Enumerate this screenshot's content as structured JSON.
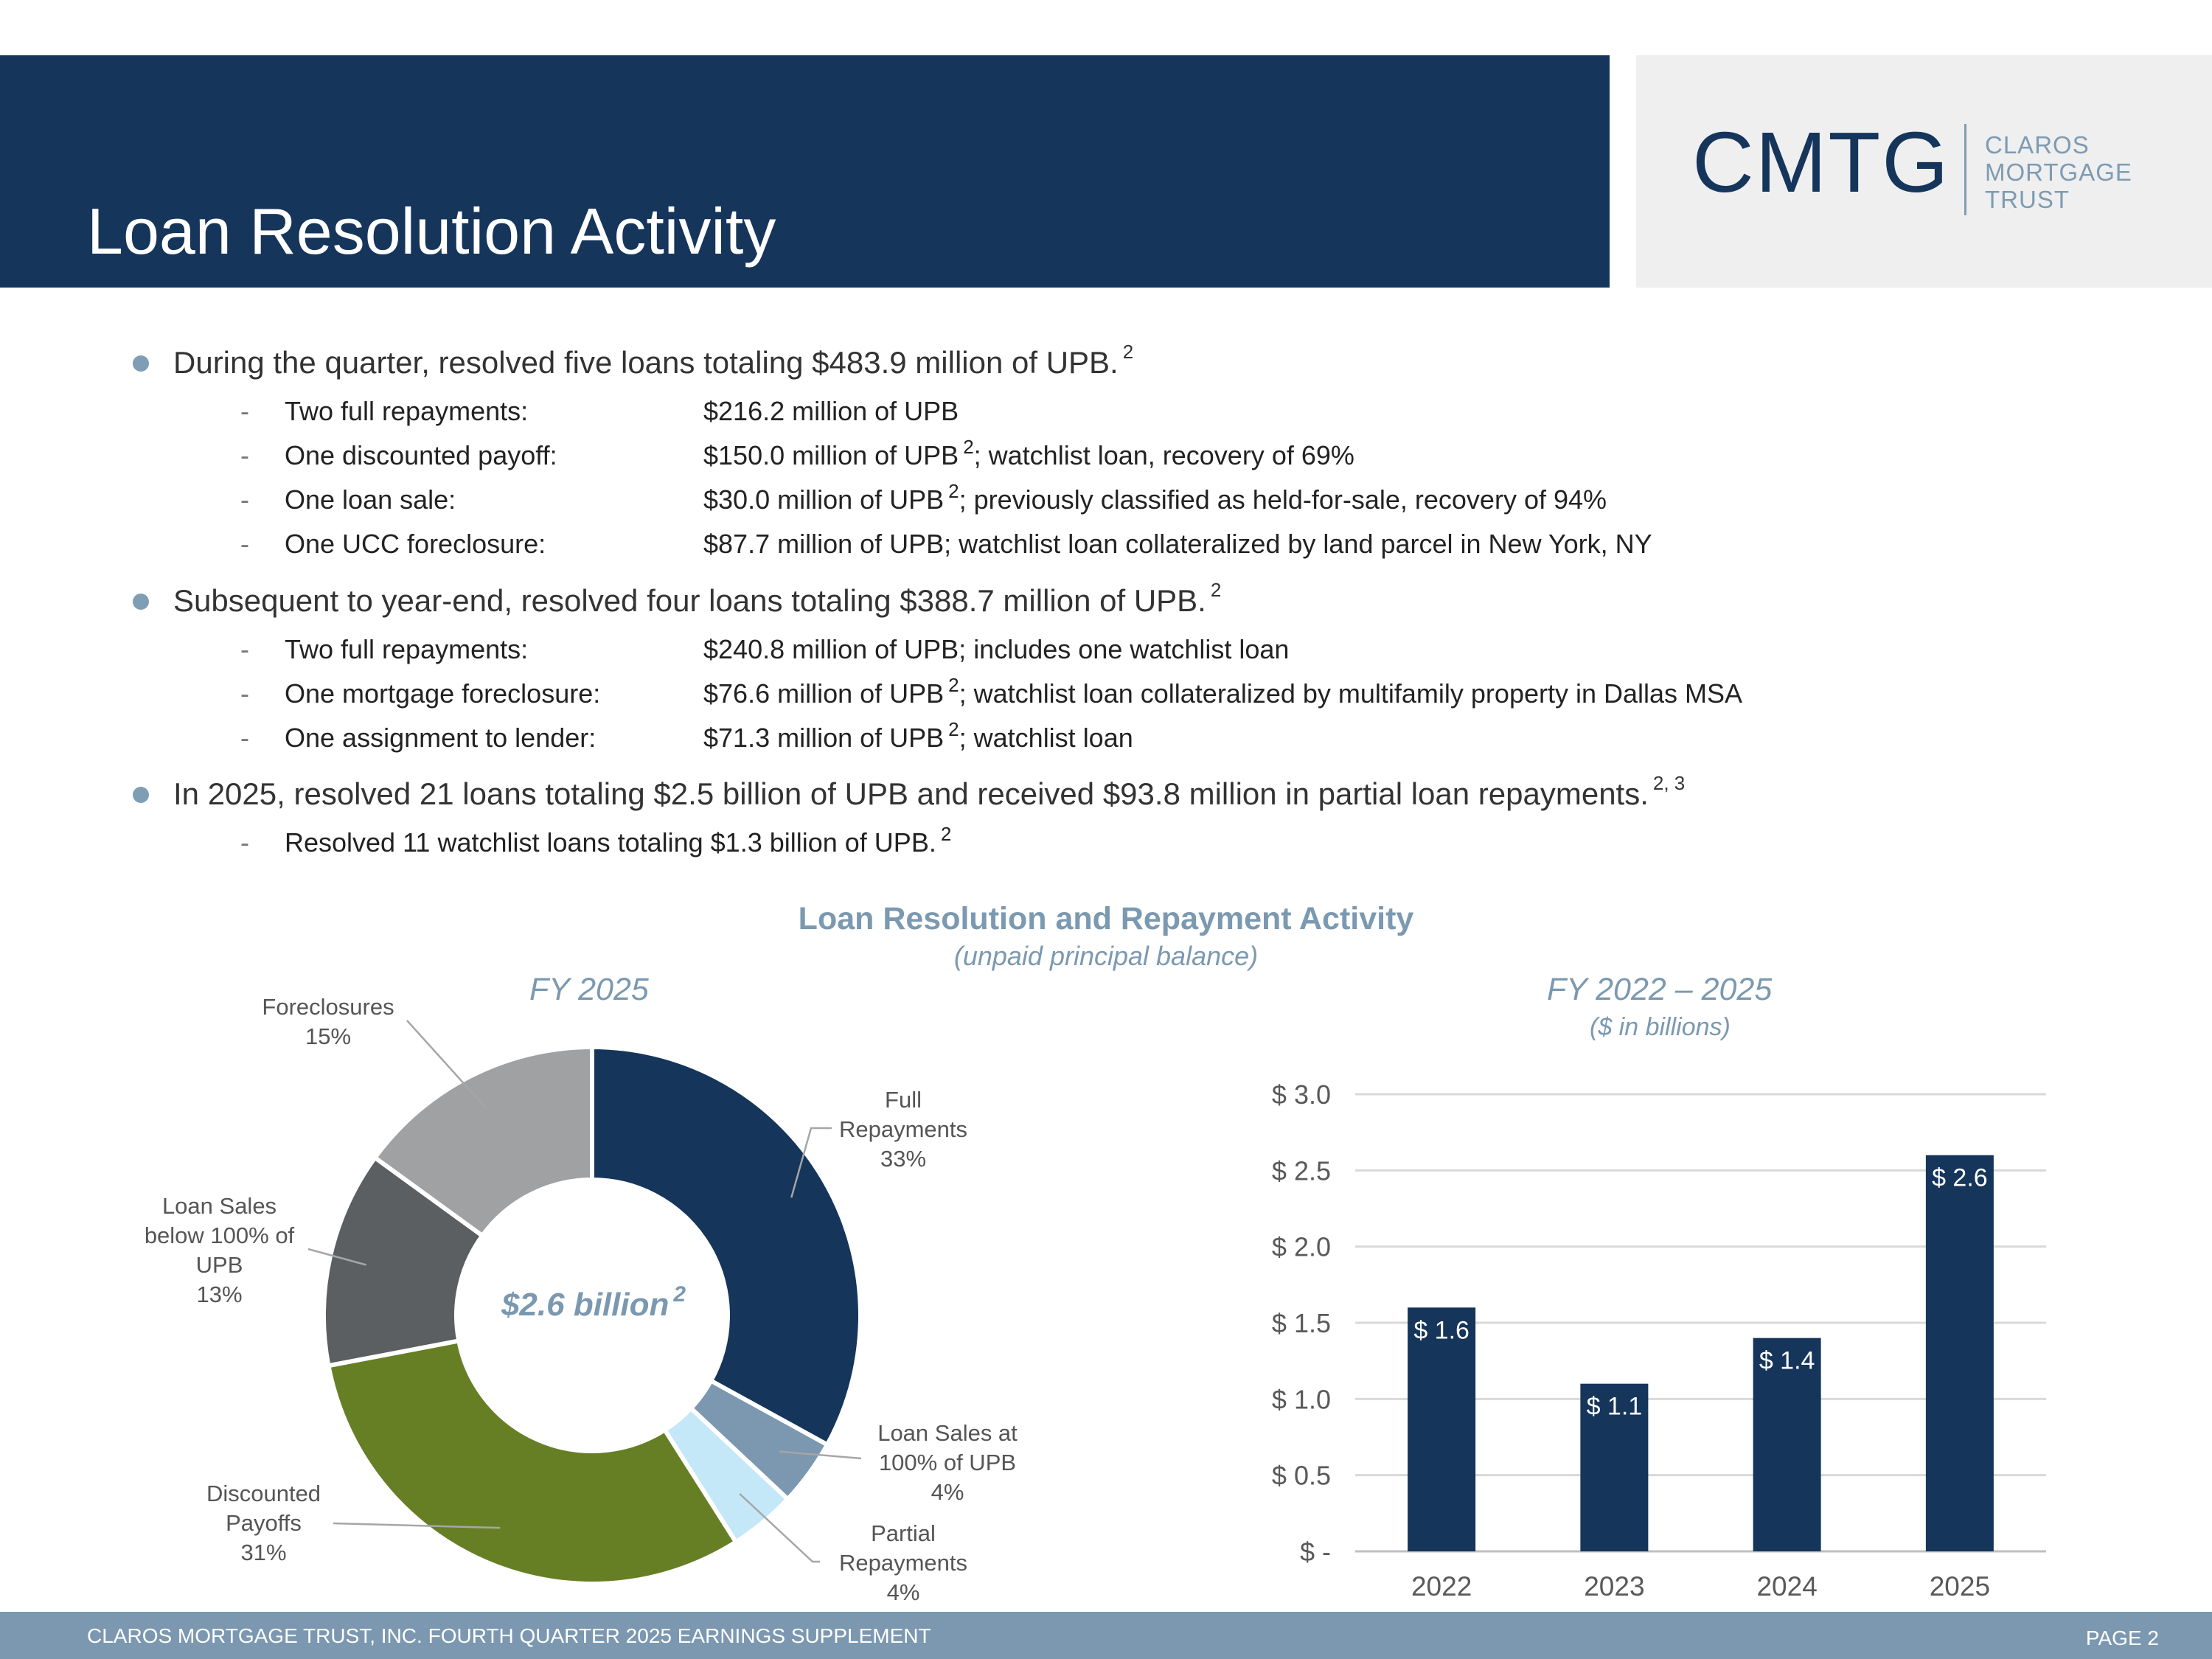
{
  "header": {
    "title": "Loan Resolution Activity",
    "logo_mark": "CMTG",
    "logo_words": [
      "CLAROS",
      "MORTGAGE",
      "TRUST"
    ]
  },
  "bullets": [
    {
      "text": "During the quarter, resolved five loans totaling $483.9 million of UPB.",
      "sup": "2",
      "items": [
        {
          "label": "Two full repayments:",
          "value": "$216.2 million of UPB",
          "sup": "",
          "rest": ""
        },
        {
          "label": "One discounted payoff:",
          "value": "$150.0 million of UPB",
          "sup": "2",
          "rest": "; watchlist loan, recovery of 69%"
        },
        {
          "label": "One loan sale:",
          "value": "$30.0 million of UPB",
          "sup": "2",
          "rest": "; previously classified as held-for-sale, recovery of 94%"
        },
        {
          "label": "One UCC foreclosure:",
          "value": "$87.7 million of UPB; watchlist loan collateralized by land parcel in New York, NY",
          "sup": "",
          "rest": ""
        }
      ]
    },
    {
      "text": "Subsequent to year-end, resolved four loans totaling $388.7 million of UPB.",
      "sup": "2",
      "items": [
        {
          "label": "Two full repayments:",
          "value": "$240.8 million of UPB; includes one watchlist loan",
          "sup": "",
          "rest": ""
        },
        {
          "label": "One mortgage foreclosure:",
          "value": "$76.6 million of UPB",
          "sup": "2",
          "rest": "; watchlist loan collateralized by multifamily property in Dallas MSA"
        },
        {
          "label": "One assignment to lender:",
          "value": "$71.3 million of UPB",
          "sup": "2",
          "rest": "; watchlist loan"
        }
      ]
    },
    {
      "text": "In 2025, resolved 21 loans totaling $2.5 billion of UPB and received $93.8 million in partial loan repayments.",
      "sup": "2, 3",
      "items": [
        {
          "label": "Resolved 11 watchlist loans totaling $1.3 billion of UPB.",
          "value": "",
          "sup": "2",
          "rest": ""
        }
      ]
    }
  ],
  "chart_header": {
    "title": "Loan Resolution and Repayment Activity",
    "subtitle": "(unpaid principal balance)"
  },
  "chart_data": [
    {
      "type": "pie",
      "title": "FY 2025",
      "center_label": "$2.6 billion",
      "center_sup": "2",
      "slices": [
        {
          "name": "Full Repayments",
          "value": 33,
          "label_lines": [
            "Full",
            "Repayments",
            "33%"
          ],
          "color": "#15355b"
        },
        {
          "name": "Loan Sales at 100% of UPB",
          "value": 4,
          "label_lines": [
            "Loan Sales at",
            "100% of UPB",
            "4%"
          ],
          "color": "#7b98b0"
        },
        {
          "name": "Partial Repayments",
          "value": 4,
          "label_lines": [
            "Partial",
            "Repayments",
            "4%"
          ],
          "color": "#c4e8f8"
        },
        {
          "name": "Discounted Payoffs",
          "value": 31,
          "label_lines": [
            "Discounted",
            "Payoffs",
            "31%"
          ],
          "color": "#667f25"
        },
        {
          "name": "Loan Sales below 100% of UPB",
          "value": 13,
          "label_lines": [
            "Loan Sales",
            "below 100% of",
            "UPB",
            "13%"
          ],
          "color": "#5b5f61"
        },
        {
          "name": "Foreclosures",
          "value": 15,
          "label_lines": [
            "Foreclosures",
            "15%"
          ],
          "color": "#a0a1a3"
        }
      ]
    },
    {
      "type": "bar",
      "title": "FY 2022 – 2025",
      "subtitle": "($ in billions)",
      "categories": [
        "2022",
        "2023",
        "2024",
        "2025"
      ],
      "values": [
        1.6,
        1.1,
        1.4,
        2.6
      ],
      "data_labels": [
        "$ 1.6",
        "$ 1.1",
        "$ 1.4",
        "$ 2.6"
      ],
      "ylim": [
        0,
        3.0
      ],
      "yticks": [
        0,
        0.5,
        1.0,
        1.5,
        2.0,
        2.5,
        3.0
      ],
      "ytick_labels": [
        "$ -",
        "$ 0.5",
        "$ 1.0",
        "$ 1.5",
        "$ 2.0",
        "$ 2.5",
        "$ 3.0"
      ],
      "bar_color": "#15355b",
      "grid": true
    }
  ],
  "footer": {
    "left": "CLAROS MORTGAGE TRUST, INC. FOURTH QUARTER 2025 EARNINGS SUPPLEMENT",
    "right": "PAGE 2"
  }
}
